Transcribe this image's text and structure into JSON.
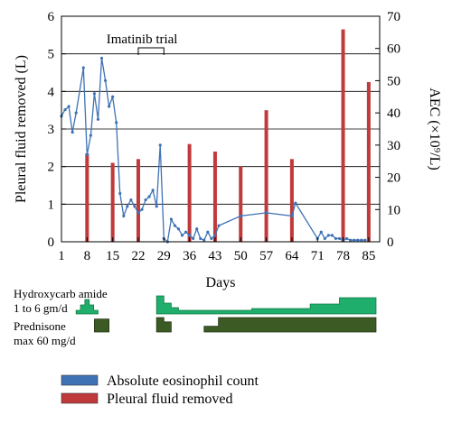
{
  "chart_data": {
    "type": "bar+line",
    "x_axis": {
      "label": "Days",
      "range": [
        1,
        88
      ],
      "ticks": [
        1,
        8,
        15,
        22,
        29,
        36,
        43,
        50,
        57,
        64,
        71,
        78,
        85
      ]
    },
    "y_left": {
      "label": "Pleural fluid removed (L)",
      "range": [
        0,
        6
      ],
      "ticks": [
        0,
        1,
        2,
        3,
        4,
        5,
        6
      ]
    },
    "y_right": {
      "label": "AEC (×10⁹/L)",
      "range": [
        0,
        70
      ],
      "ticks": [
        0,
        10,
        20,
        30,
        40,
        50,
        60,
        70
      ]
    },
    "gridlines": "horizontal at left-axis ticks",
    "series": [
      {
        "name": "Pleural fluid removed",
        "type": "bar",
        "axis": "left",
        "color": "#c0393b",
        "x": [
          8,
          15,
          22,
          36,
          43,
          50,
          57,
          64,
          78,
          85
        ],
        "values": [
          2.35,
          2.1,
          2.2,
          2.6,
          2.4,
          2.0,
          3.5,
          2.2,
          5.65,
          4.25
        ]
      },
      {
        "name": "Absolute eosinophil count",
        "type": "line",
        "axis": "right",
        "color": "#3f72b5",
        "x": [
          1,
          2,
          3,
          4,
          5,
          7,
          8,
          9,
          10,
          11,
          12,
          13,
          14,
          15,
          16,
          17,
          18,
          19,
          20,
          21,
          22,
          23,
          24,
          25,
          26,
          27,
          28,
          29,
          30,
          31,
          32,
          33,
          34,
          35,
          36,
          37,
          38,
          39,
          40,
          41,
          42,
          43,
          44,
          50,
          57,
          64,
          65,
          71,
          72,
          73,
          74,
          75,
          76,
          77,
          78,
          79,
          80,
          81,
          82,
          83,
          84
        ],
        "values": [
          39,
          41,
          42,
          34,
          40,
          54,
          27,
          33,
          46,
          38,
          57,
          50,
          42,
          45,
          37,
          15,
          8,
          11,
          13,
          11,
          9,
          10,
          13,
          14,
          16,
          11,
          30,
          1,
          0,
          7,
          5,
          4,
          2,
          3,
          2,
          1,
          4,
          1,
          0.5,
          3,
          1,
          2,
          5,
          8,
          9,
          8,
          12,
          1,
          3,
          1,
          2,
          2,
          1,
          1,
          0.5,
          1,
          0.5,
          0.5,
          0.5,
          0.5,
          0.5
        ]
      }
    ],
    "annotations": [
      {
        "text": "Imatinib trial",
        "x_start": 22,
        "x_end": 29
      }
    ],
    "legend": {
      "placement": "bottom",
      "entries": [
        {
          "label": "Absolute eosinophil count",
          "color": "#3f72b5"
        },
        {
          "label": "Pleural fluid removed",
          "color": "#c0393b"
        }
      ]
    },
    "treatments": [
      {
        "label_lines": [
          "Hydroxycarb amide",
          "1 to 6 gm/d"
        ],
        "color": "#1fae6b",
        "stroke": "#0e7a43",
        "segments": [
          {
            "start": 5,
            "end": 11,
            "profile": [
              0.2,
              0.5,
              0.8,
              0.5,
              0.2
            ]
          },
          {
            "start": 27,
            "end": 87,
            "profile": [
              1.0,
              0.6,
              0.35,
              0.2,
              0.2,
              0.2,
              0.2,
              0.2,
              0.2,
              0.2,
              0.2,
              0.2,
              0.2,
              0.3,
              0.3,
              0.3,
              0.3,
              0.3,
              0.3,
              0.3,
              0.3,
              0.55,
              0.55,
              0.55,
              0.55,
              0.9,
              0.9,
              0.9,
              0.9,
              0.9
            ]
          }
        ]
      },
      {
        "label_lines": [
          "Prednisone",
          "max 60 mg/d"
        ],
        "color": "#3c5a24",
        "stroke": "#223512",
        "segments": [
          {
            "start": 10,
            "end": 14,
            "profile": [
              0.9
            ]
          },
          {
            "start": 27,
            "end": 31,
            "profile": [
              1.0,
              0.7
            ]
          },
          {
            "start": 40,
            "end": 87,
            "profile": [
              0.4,
              1.0,
              1.0,
              1.0,
              1.0,
              1.0,
              1.0,
              1.0,
              1.0,
              1.0,
              1.0,
              1.0
            ]
          }
        ]
      }
    ]
  }
}
